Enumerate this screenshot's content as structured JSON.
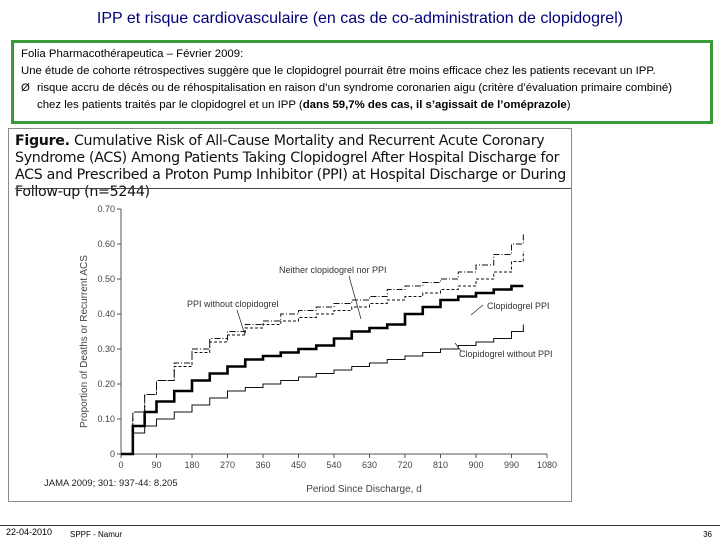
{
  "slide": {
    "title": "IPP et risque cardiovasculaire (en cas de co-administration de clopidogrel)"
  },
  "textbox": {
    "line1": "Folia Pharmacothérapeutica – Février 2009:",
    "line2": "Une étude de cohorte rétrospectives suggère que le clopidogrel pourrait être moins efficace chez les patients recevant un IPP.",
    "bullet_symbol": "Ø",
    "bullet_a": "risque accru de décès ou de réhospitalisation en raison d’un syndrome coronarien aigu (critère d’évaluation primaire combiné)",
    "bullet_b_pre": "chez les patients traités par le clopidogrel et un IPP (",
    "bullet_b_bold": "dans 59,7% des cas, il s’agissait de l’oméprazole",
    "bullet_b_post": ")"
  },
  "figure": {
    "caption_label": "Figure.",
    "caption_text": " Cumulative Risk of All-Cause Mortality and Recurrent Acute Coronary Syndrome (ACS) Among Patients Taking Clopidogrel After Hospital Discharge for ACS and Prescribed a Proton Pump Inhibitor (PPI) at Hospital Discharge or During Follow-up (n=5244)",
    "source": "JAMA 2009; 301: 937-44: 8.205"
  },
  "chart_data": {
    "type": "line",
    "xlabel": "Period Since Discharge, d",
    "ylabel": "Proportion of Deaths or Recurrent ACS",
    "x_ticks": [
      0,
      90,
      180,
      270,
      360,
      450,
      540,
      630,
      720,
      810,
      900,
      990,
      1080
    ],
    "y_ticks": [
      0,
      0.1,
      0.2,
      0.3,
      0.4,
      0.5,
      0.6,
      0.7
    ],
    "y_tick_labels": [
      "0",
      "0.10",
      "0.20",
      "0.30",
      "0.40",
      "0.50",
      "0.60",
      "0.70"
    ],
    "xlim": [
      0,
      1080
    ],
    "ylim": [
      0,
      0.7
    ],
    "grid": false,
    "series": [
      {
        "name": "Neither clopidogrel nor PPI",
        "style": "dash-dot",
        "x": [
          0,
          30,
          60,
          90,
          135,
          180,
          225,
          270,
          315,
          360,
          405,
          450,
          495,
          540,
          585,
          630,
          675,
          720,
          765,
          810,
          855,
          900,
          945,
          990,
          1020
        ],
        "y": [
          0,
          0.12,
          0.17,
          0.21,
          0.26,
          0.3,
          0.33,
          0.35,
          0.37,
          0.38,
          0.4,
          0.41,
          0.42,
          0.43,
          0.44,
          0.45,
          0.47,
          0.48,
          0.49,
          0.5,
          0.52,
          0.54,
          0.57,
          0.6,
          0.63
        ]
      },
      {
        "name": "PPI without clopidogrel",
        "style": "dashed",
        "x": [
          0,
          30,
          60,
          90,
          135,
          180,
          225,
          270,
          315,
          360,
          405,
          450,
          495,
          540,
          585,
          630,
          675,
          720,
          765,
          810,
          855,
          900,
          945,
          990,
          1020
        ],
        "y": [
          0,
          0.12,
          0.17,
          0.21,
          0.25,
          0.29,
          0.32,
          0.34,
          0.36,
          0.37,
          0.38,
          0.39,
          0.4,
          0.41,
          0.42,
          0.43,
          0.44,
          0.45,
          0.46,
          0.47,
          0.48,
          0.5,
          0.52,
          0.55,
          0.58
        ]
      },
      {
        "name": "Clopidogrel   PPI",
        "style": "thick",
        "x": [
          0,
          30,
          60,
          90,
          135,
          180,
          225,
          270,
          315,
          360,
          405,
          450,
          495,
          540,
          585,
          630,
          675,
          720,
          765,
          810,
          855,
          900,
          945,
          990,
          1020
        ],
        "y": [
          0,
          0.08,
          0.12,
          0.15,
          0.18,
          0.21,
          0.23,
          0.25,
          0.27,
          0.28,
          0.29,
          0.3,
          0.31,
          0.33,
          0.35,
          0.36,
          0.37,
          0.4,
          0.42,
          0.44,
          0.45,
          0.46,
          0.47,
          0.48,
          0.48
        ]
      },
      {
        "name": "Clopidogrel without PPI",
        "style": "thin",
        "x": [
          0,
          30,
          60,
          90,
          135,
          180,
          225,
          270,
          315,
          360,
          405,
          450,
          495,
          540,
          585,
          630,
          675,
          720,
          765,
          810,
          855,
          900,
          945,
          990,
          1020
        ],
        "y": [
          0,
          0.06,
          0.08,
          0.1,
          0.12,
          0.14,
          0.16,
          0.18,
          0.19,
          0.2,
          0.21,
          0.22,
          0.23,
          0.24,
          0.25,
          0.26,
          0.27,
          0.28,
          0.29,
          0.3,
          0.31,
          0.32,
          0.33,
          0.35,
          0.37
        ]
      }
    ],
    "annotations": [
      "Neither clopidogrel nor PPI",
      "PPI without clopidogrel",
      "Clopidogrel   PPI",
      "Clopidogrel without PPI"
    ]
  },
  "footer": {
    "date": "22-04-2010",
    "org": "SPPF - Namur",
    "page": "36"
  }
}
